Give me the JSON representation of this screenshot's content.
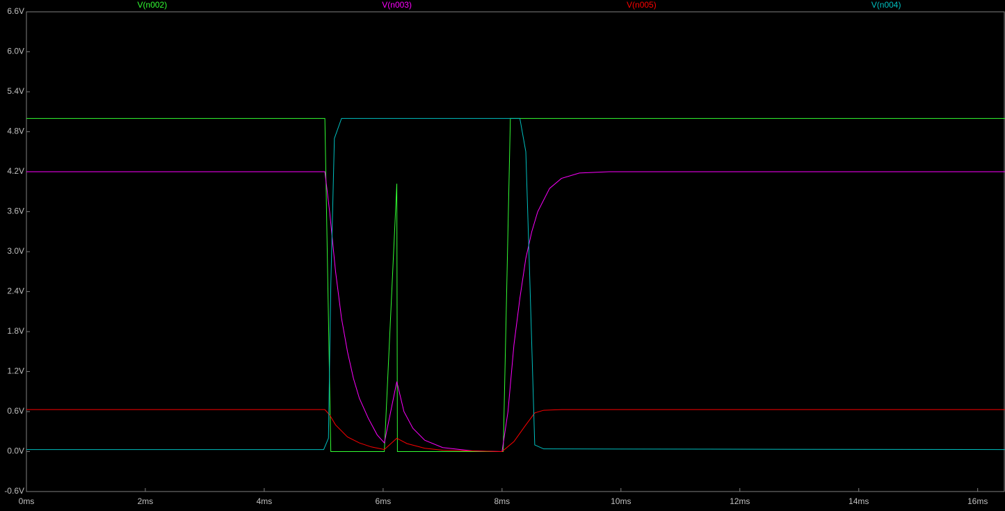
{
  "chart_data": {
    "type": "line",
    "xlim": [
      0,
      16.46
    ],
    "ylim": [
      -0.6,
      6.6
    ],
    "xticks": [
      {
        "value": 0,
        "label": "0ms"
      },
      {
        "value": 2,
        "label": "2ms"
      },
      {
        "value": 4,
        "label": "4ms"
      },
      {
        "value": 6,
        "label": "6ms"
      },
      {
        "value": 8,
        "label": "8ms"
      },
      {
        "value": 10,
        "label": "10ms"
      },
      {
        "value": 12,
        "label": "12ms"
      },
      {
        "value": 14,
        "label": "14ms"
      },
      {
        "value": 16,
        "label": "16ms"
      }
    ],
    "yticks": [
      {
        "value": -0.6,
        "label": "-0.6V"
      },
      {
        "value": 0,
        "label": "0.0V"
      },
      {
        "value": 0.6,
        "label": "0.6V"
      },
      {
        "value": 1.2,
        "label": "1.2V"
      },
      {
        "value": 1.8,
        "label": "1.8V"
      },
      {
        "value": 2.4,
        "label": "2.4V"
      },
      {
        "value": 3.0,
        "label": "3.0V"
      },
      {
        "value": 3.6,
        "label": "3.6V"
      },
      {
        "value": 4.2,
        "label": "4.2V"
      },
      {
        "value": 4.8,
        "label": "4.8V"
      },
      {
        "value": 5.4,
        "label": "5.4V"
      },
      {
        "value": 6.0,
        "label": "6.0V"
      },
      {
        "value": 6.6,
        "label": "6.6V"
      }
    ],
    "series": [
      {
        "name": "V(n002)",
        "color": "#33ff33",
        "x": [
          0,
          5.02,
          5.12,
          6.02,
          6.23,
          6.24,
          8.02,
          8.14,
          16.46
        ],
        "values": [
          5.0,
          5.0,
          0,
          0,
          4.02,
          0,
          0,
          5.0,
          5.0
        ]
      },
      {
        "name": "V(n003)",
        "color": "#ff00ff",
        "x": [
          0,
          5.02,
          5.1,
          5.2,
          5.3,
          5.4,
          5.5,
          5.6,
          5.75,
          5.9,
          6.02,
          6.23,
          6.35,
          6.5,
          6.7,
          7.0,
          7.5,
          8.0,
          8.1,
          8.2,
          8.3,
          8.4,
          8.5,
          8.6,
          8.8,
          9.0,
          9.3,
          9.8,
          16.46
        ],
        "values": [
          4.2,
          4.2,
          3.6,
          2.7,
          2.0,
          1.5,
          1.1,
          0.8,
          0.5,
          0.25,
          0.13,
          1.05,
          0.6,
          0.35,
          0.17,
          0.06,
          0.01,
          0.0,
          0.6,
          1.6,
          2.3,
          2.9,
          3.3,
          3.6,
          3.95,
          4.1,
          4.18,
          4.2,
          4.2
        ]
      },
      {
        "name": "V(n005)",
        "color": "#ff0000",
        "x": [
          0,
          5.02,
          5.1,
          5.2,
          5.4,
          5.6,
          5.8,
          6.02,
          6.23,
          6.4,
          6.7,
          7.0,
          8.0,
          8.2,
          8.4,
          8.55,
          8.7,
          9.0,
          16.46
        ],
        "values": [
          0.63,
          0.63,
          0.55,
          0.4,
          0.22,
          0.13,
          0.07,
          0.03,
          0.2,
          0.12,
          0.05,
          0.02,
          0.0,
          0.15,
          0.4,
          0.58,
          0.62,
          0.63,
          0.63
        ]
      },
      {
        "name": "V(n004)",
        "color": "#00c0c0",
        "x": [
          0,
          5.0,
          5.08,
          5.12,
          5.18,
          5.3,
          8.3,
          8.4,
          8.47,
          8.55,
          8.7,
          16.46
        ],
        "values": [
          0.03,
          0.03,
          0.2,
          2.5,
          4.7,
          5.0,
          5.0,
          4.5,
          2.5,
          0.1,
          0.04,
          0.03
        ]
      }
    ]
  }
}
